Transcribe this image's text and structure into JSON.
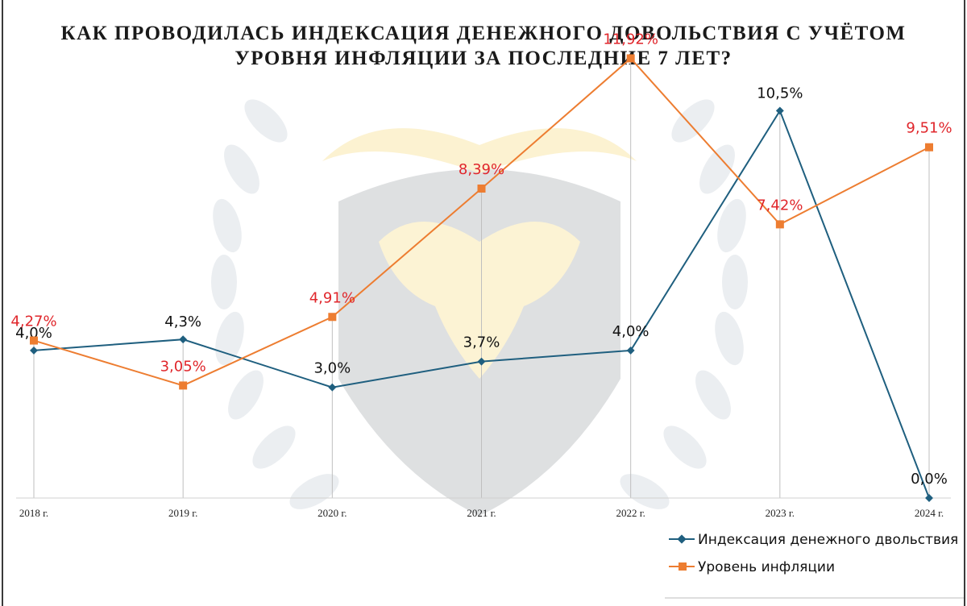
{
  "chart_data": {
    "type": "line",
    "title": "КАК ПРОВОДИЛАСЬ ИНДЕКСАЦИЯ ДЕНЕЖНОГО ДОВОЛЬСТВИЯ С УЧЁТОМ УРОВНЯ ИНФЛЯЦИИ ЗА ПОСЛЕДНИЕ 7 ЛЕТ?",
    "title_lines": [
      "КАК ПРОВОДИЛАСЬ ИНДЕКСАЦИЯ ДЕНЕЖНОГО ДОВОЛЬСТВИЯ С УЧЁТОМ",
      "УРОВНЯ ИНФЛЯЦИИ ЗА ПОСЛЕДНИЕ 7 ЛЕТ?"
    ],
    "categories": [
      "2018 г.",
      "2019 г.",
      "2020 г.",
      "2021 г.",
      "2022 г.",
      "2023 г.",
      "2024 г."
    ],
    "ylim": [
      0,
      13
    ],
    "grid": "vertical",
    "legend_position": "bottom-right",
    "series": [
      {
        "name": "Индексация денежного двольствия",
        "values": [
          4.0,
          4.3,
          3.0,
          3.7,
          4.0,
          10.5,
          0.0
        ],
        "labels": [
          "4,0%",
          "4,3%",
          "3,0%",
          "3,7%",
          "4,0%",
          "10,5%",
          "0,0%"
        ],
        "color": "#1f5f7f",
        "marker": "diamond",
        "label_color": "#111111"
      },
      {
        "name": "Уровень инфляции",
        "values": [
          4.27,
          3.05,
          4.91,
          8.39,
          11.92,
          7.42,
          9.51
        ],
        "labels": [
          "4,27%",
          "3,05%",
          "4,91%",
          "8,39%",
          "11,92%",
          "7,42%",
          "9,51%"
        ],
        "color": "#ed7d31",
        "marker": "square",
        "label_color": "#e0262b"
      }
    ]
  }
}
